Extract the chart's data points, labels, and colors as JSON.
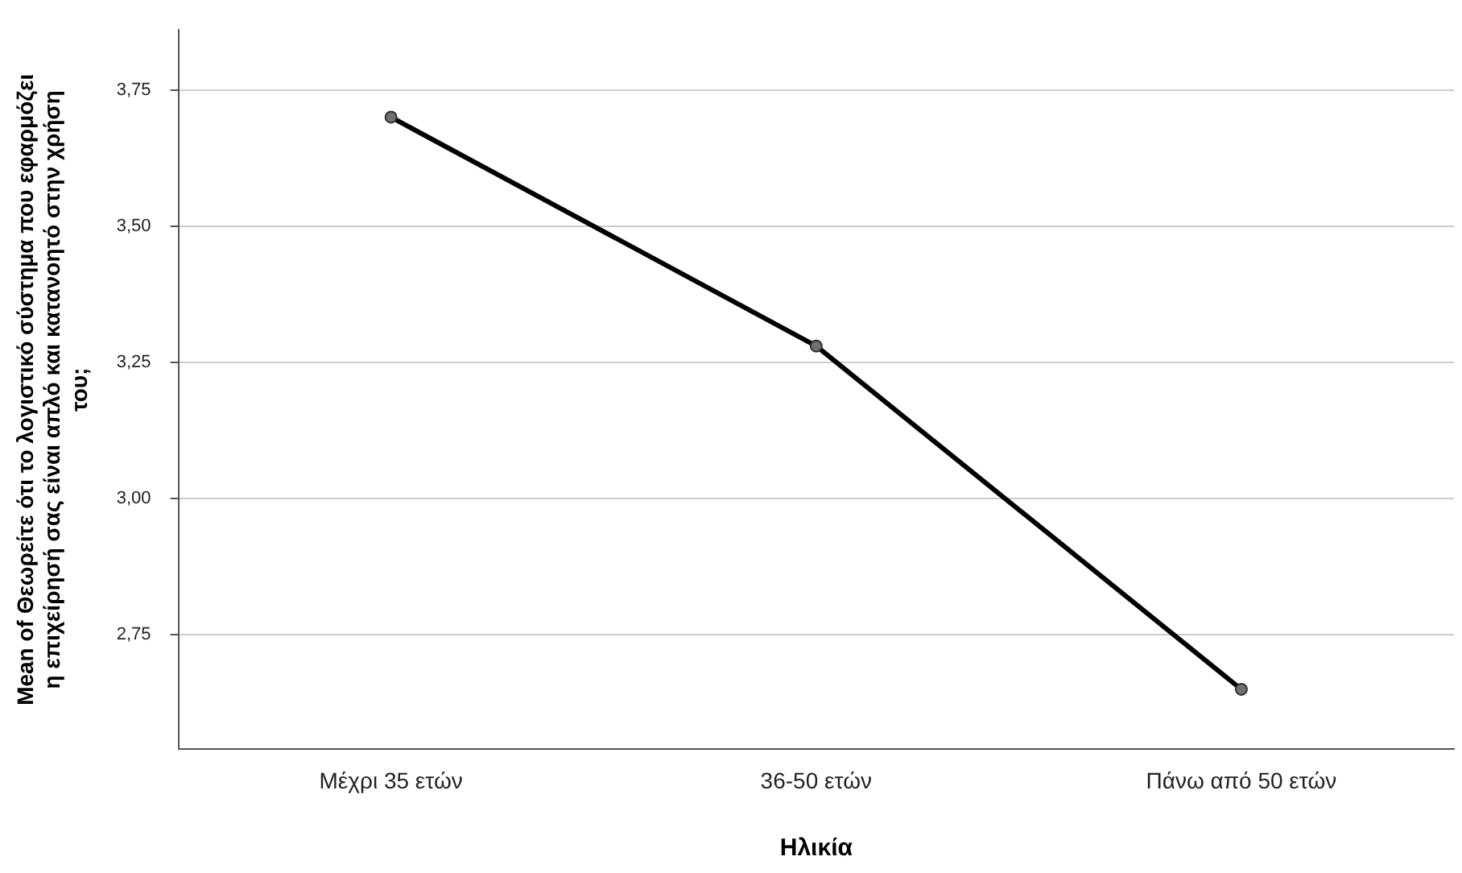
{
  "chart_data": {
    "type": "line",
    "xlabel": "Ηλικία",
    "ylabel": "Mean of Θεωρείτε ότι το λογιστικό σύστημα που εφαρμόζει η επιχείρησή σας είναι απλό και κατανοητό στην χρήση του;",
    "categories": [
      "Μέχρι 35 ετών",
      "36-50 ετών",
      "Πάνω από 50 ετών"
    ],
    "series": [
      {
        "color": "#000000",
        "values": [
          3.7,
          3.28,
          2.65
        ]
      }
    ],
    "ylim": [
      2.54,
      3.86
    ],
    "yticks": [
      {
        "value": 2.75,
        "label": "2,75"
      },
      {
        "value": 3.0,
        "label": "3,00"
      },
      {
        "value": 3.25,
        "label": "3,25"
      },
      {
        "value": 3.5,
        "label": "3,50"
      },
      {
        "value": 3.75,
        "label": "3,75"
      }
    ],
    "grid": "y",
    "marker": "circle",
    "line_style": "solid",
    "legend": false
  }
}
